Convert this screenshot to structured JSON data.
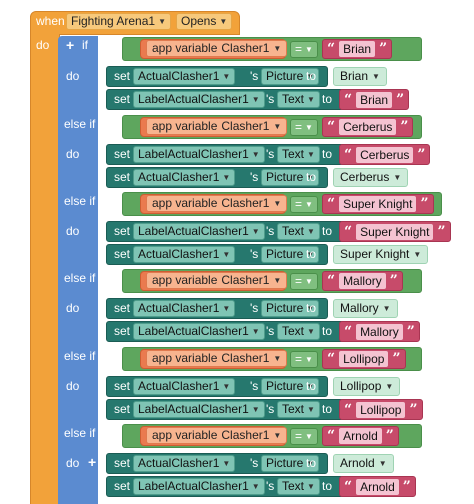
{
  "event": {
    "when": "when",
    "component": "Fighting Arena1",
    "event_name": "Opens",
    "do": "do"
  },
  "controls": {
    "if": "if",
    "else_if": "else if",
    "do": "do",
    "plus": "+",
    "minus": "−"
  },
  "keywords": {
    "app_variable": "app variable",
    "variable_name": "Clasher1",
    "eq": "=",
    "set": "set",
    "possessive": "'s",
    "to": "to"
  },
  "components": {
    "actual": "ActualClasher1",
    "label": "LabelActualClasher1"
  },
  "properties": {
    "picture": "Picture",
    "text": "Text"
  },
  "quote": {
    "open": "“",
    "close": "”"
  },
  "branches": [
    {
      "name": "Brian",
      "img": "Brian"
    },
    {
      "name": "Cerberus",
      "img": "Cerberus"
    },
    {
      "name": "Super Knight",
      "img": "Super Knight"
    },
    {
      "name": "Mallory",
      "img": "Mallory"
    },
    {
      "name": "Lollipop",
      "img": "Lollipop"
    },
    {
      "name": "Arnold",
      "img": "Arnold"
    }
  ],
  "colors": {
    "event": "#f2a23a",
    "control": "#5b8bd0",
    "compare": "#5ea65e",
    "app_variable": "#ea7a4f",
    "text": "#c74b6a",
    "setter": "#26786e"
  }
}
